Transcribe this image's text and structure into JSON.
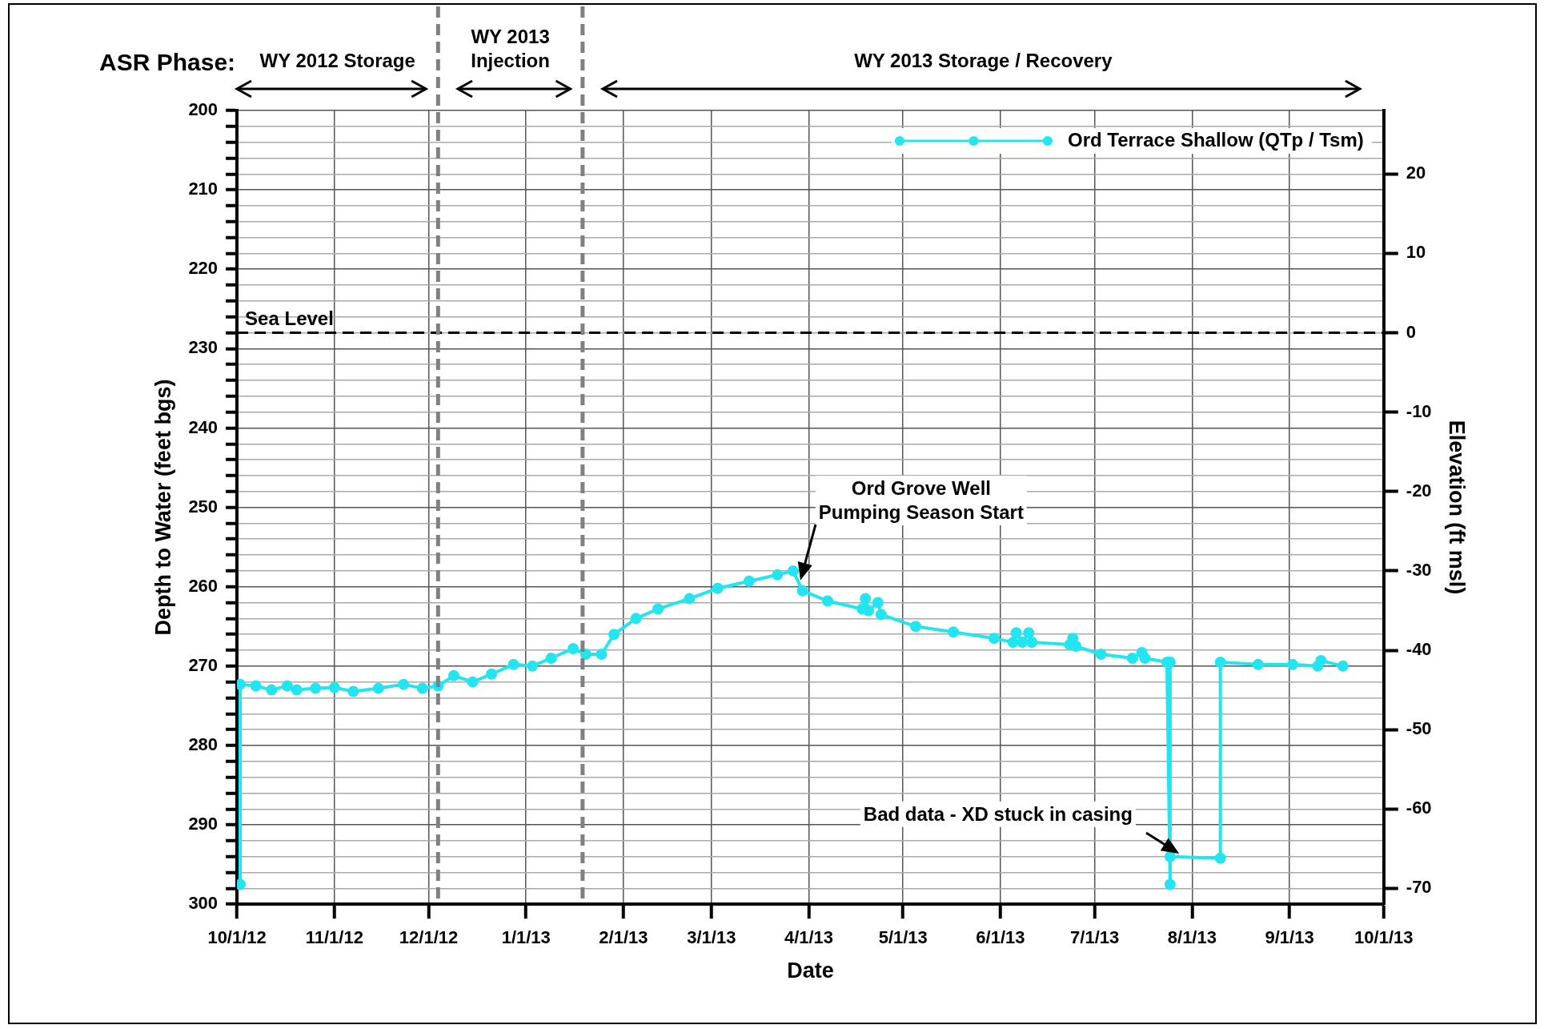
{
  "chart_data": {
    "type": "line",
    "xlabel": "Date",
    "ylabel": "Depth to Water (feet bgs)",
    "y2label": "Elevation (ft msl)",
    "xlim": [
      "2012-10-01",
      "2013-10-01"
    ],
    "xticks": [
      {
        "value": "2012-10-01",
        "label": "10/1/12"
      },
      {
        "value": "2012-11-01",
        "label": "11/1/12"
      },
      {
        "value": "2012-12-01",
        "label": "12/1/12"
      },
      {
        "value": "2013-01-01",
        "label": "1/1/13"
      },
      {
        "value": "2013-02-01",
        "label": "2/1/13"
      },
      {
        "value": "2013-03-01",
        "label": "3/1/13"
      },
      {
        "value": "2013-04-01",
        "label": "4/1/13"
      },
      {
        "value": "2013-05-01",
        "label": "5/1/13"
      },
      {
        "value": "2013-06-01",
        "label": "6/1/13"
      },
      {
        "value": "2013-07-01",
        "label": "7/1/13"
      },
      {
        "value": "2013-08-01",
        "label": "8/1/13"
      },
      {
        "value": "2013-09-01",
        "label": "9/1/13"
      },
      {
        "value": "2013-10-01",
        "label": "10/1/13"
      }
    ],
    "ylim": [
      300,
      200
    ],
    "yticks": [
      200,
      {
        "value": 202,
        "label": null
      },
      {
        "value": 204,
        "label": null
      },
      {
        "value": 206,
        "label": null
      },
      {
        "value": 208,
        "label": null
      },
      210,
      {
        "value": 212,
        "label": null
      },
      {
        "value": 214,
        "label": null
      },
      {
        "value": 216,
        "label": null
      },
      {
        "value": 218,
        "label": null
      },
      220,
      {
        "value": 222,
        "label": null
      },
      {
        "value": 224,
        "label": null
      },
      {
        "value": 226,
        "label": null
      },
      {
        "value": 228,
        "label": null
      },
      230,
      {
        "value": 232,
        "label": null
      },
      {
        "value": 234,
        "label": null
      },
      {
        "value": 236,
        "label": null
      },
      {
        "value": 238,
        "label": null
      },
      240,
      {
        "value": 242,
        "label": null
      },
      {
        "value": 244,
        "label": null
      },
      {
        "value": 246,
        "label": null
      },
      {
        "value": 248,
        "label": null
      },
      250,
      {
        "value": 252,
        "label": null
      },
      {
        "value": 254,
        "label": null
      },
      {
        "value": 256,
        "label": null
      },
      {
        "value": 258,
        "label": null
      },
      260,
      {
        "value": 262,
        "label": null
      },
      {
        "value": 264,
        "label": null
      },
      {
        "value": 266,
        "label": null
      },
      {
        "value": 268,
        "label": null
      },
      270,
      {
        "value": 272,
        "label": null
      },
      {
        "value": 274,
        "label": null
      },
      {
        "value": 276,
        "label": null
      },
      {
        "value": 278,
        "label": null
      },
      280,
      {
        "value": 282,
        "label": null
      },
      {
        "value": 284,
        "label": null
      },
      {
        "value": 286,
        "label": null
      },
      {
        "value": 288,
        "label": null
      },
      290,
      {
        "value": 292,
        "label": null
      },
      {
        "value": 294,
        "label": null
      },
      {
        "value": 296,
        "label": null
      },
      {
        "value": 298,
        "label": null
      },
      300
    ],
    "y2lim": [
      -72,
      28
    ],
    "y2ticks": [
      20,
      10,
      0,
      -10,
      -20,
      -30,
      -40,
      -50,
      -60,
      -70
    ],
    "grid": true,
    "legend": "top right",
    "marker": "circle",
    "line_style": "solid",
    "series": [
      {
        "name": "Ord Terrace Shallow (QTp / Tsm)",
        "color": "#22e5f0",
        "x": [
          "2012-10-02",
          "2012-10-02",
          "2012-10-07",
          "2012-10-12",
          "2012-10-17",
          "2012-10-20",
          "2012-10-26",
          "2012-11-01",
          "2012-11-07",
          "2012-11-15",
          "2012-11-23",
          "2012-11-29",
          "2012-12-04",
          "2012-12-09",
          "2012-12-15",
          "2012-12-21",
          "2012-12-28",
          "2013-01-03",
          "2013-01-09",
          "2013-01-16",
          "2013-01-20",
          "2013-01-25",
          "2013-01-29",
          "2013-02-05",
          "2013-02-12",
          "2013-02-22",
          "2013-03-03",
          "2013-03-13",
          "2013-03-22",
          "2013-03-27",
          "2013-03-30",
          "2013-04-07",
          "2013-04-18",
          "2013-04-19",
          "2013-04-20",
          "2013-04-23",
          "2013-04-24",
          "2013-05-05",
          "2013-05-17",
          "2013-05-30",
          "2013-06-05",
          "2013-06-06",
          "2013-06-08",
          "2013-06-10",
          "2013-06-11",
          "2013-06-23",
          "2013-06-24",
          "2013-06-25",
          "2013-07-03",
          "2013-07-13",
          "2013-07-16",
          "2013-07-17",
          "2013-07-24",
          "2013-07-25",
          "2013-07-25",
          "2013-07-25",
          "2013-08-10",
          "2013-08-10",
          "2013-08-22",
          "2013-09-02",
          "2013-09-10",
          "2013-09-11",
          "2013-09-18"
        ],
        "values": [
          297.5,
          272.3,
          272.5,
          273,
          272.5,
          273,
          272.8,
          272.7,
          273.2,
          272.8,
          272.3,
          272.8,
          272.5,
          271.2,
          272,
          271,
          269.8,
          270,
          269,
          267.8,
          268.5,
          268.5,
          266,
          264,
          262.8,
          261.5,
          260.2,
          259.3,
          258.5,
          258,
          260.5,
          261.8,
          262.8,
          261.5,
          263,
          262,
          263.5,
          265,
          265.7,
          266.5,
          267,
          265.8,
          267,
          265.8,
          267,
          267.3,
          266.5,
          267.5,
          268.5,
          269,
          268.3,
          269,
          269.5,
          297.5,
          269.5,
          294,
          294.2,
          269.5,
          269.8,
          269.8,
          270,
          269.3,
          270
        ]
      }
    ],
    "ref_lines": [
      {
        "axis": "y",
        "value": 228,
        "label": "Sea Level",
        "color": "#000000",
        "line_style": "dashed"
      },
      {
        "axis": "x",
        "value": "2012-12-04",
        "color": "#808080",
        "line_style": "dashed"
      },
      {
        "axis": "x",
        "value": "2013-01-19",
        "color": "#808080",
        "line_style": "dashed"
      }
    ],
    "annotations": [
      "ASR Phase:",
      "WY 2012 Storage",
      "WY 2013\nInjection",
      "WY 2013 Storage / Recovery",
      {
        "text": "Ord Grove Well\nPumping Season Start",
        "x": "2013-03-27",
        "y": 258
      },
      {
        "text": "Bad data - XD stuck in casing",
        "x": "2013-07-25",
        "y": 294
      }
    ]
  }
}
